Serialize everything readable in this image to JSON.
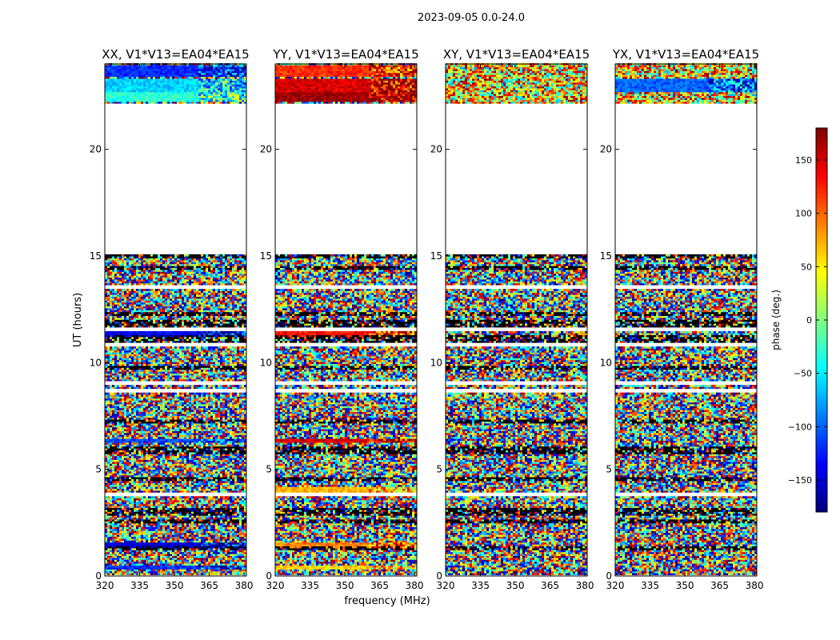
{
  "figure": {
    "suptitle": "2023-09-05 0.0-24.0"
  },
  "colorbar": {
    "label": "phase (deg.)",
    "ticks": [
      150,
      100,
      50,
      0,
      -50,
      -100,
      -150
    ],
    "tick_labels": [
      "150",
      "100",
      "50",
      "0",
      "−50",
      "−100",
      "−150"
    ],
    "vmin": -180,
    "vmax": 180,
    "colormap": "jet",
    "colors": [
      "#00007f",
      "#0000ff",
      "#007fff",
      "#00ffff",
      "#7fff7f",
      "#ffff00",
      "#ff7f00",
      "#ff0000",
      "#7f0000"
    ]
  },
  "chart_data": {
    "type": "heatmap",
    "xlabel": "frequency (MHz)",
    "ylabel": "UT (hours)",
    "xlim": [
      320,
      381
    ],
    "ylim": [
      0,
      24
    ],
    "xticks": [
      320,
      335,
      350,
      365,
      380
    ],
    "yticks": [
      0,
      5,
      10,
      15,
      20
    ],
    "x_tick_labels": [
      "320",
      "335",
      "350",
      "365",
      "380"
    ],
    "y_tick_labels": [
      "0",
      "5",
      "10",
      "15",
      "20"
    ],
    "z_label": "phase (deg.)",
    "z_range": [
      -180,
      180
    ],
    "data_gap_hours": [
      [
        15.0,
        22.0
      ]
    ],
    "panels": [
      {
        "title": "XX, V1*V13=EA04*EA15",
        "coherent_bands": [
          {
            "t": [
              23.4,
              23.9
            ],
            "phase": -120
          },
          {
            "t": [
              22.6,
              23.3
            ],
            "phase": -60
          },
          {
            "t": [
              22.2,
              22.6
            ],
            "phase": -30
          },
          {
            "t": [
              11.2,
              11.5
            ],
            "phase": -140
          },
          {
            "t": [
              6.2,
              6.4
            ],
            "phase": -110
          },
          {
            "t": [
              1.3,
              1.5
            ],
            "phase": -150
          },
          {
            "t": [
              0.3,
              0.5
            ],
            "phase": -120
          }
        ]
      },
      {
        "title": "YY, V1*V13=EA04*EA15",
        "coherent_bands": [
          {
            "t": [
              23.4,
              23.9
            ],
            "phase": 120
          },
          {
            "t": [
              22.6,
              23.3
            ],
            "phase": 150
          },
          {
            "t": [
              22.2,
              22.6
            ],
            "phase": 170
          },
          {
            "t": [
              11.2,
              11.5
            ],
            "phase": 130
          },
          {
            "t": [
              6.2,
              6.4
            ],
            "phase": 150
          },
          {
            "t": [
              3.9,
              4.1
            ],
            "phase": 70
          },
          {
            "t": [
              1.3,
              1.5
            ],
            "phase": 90
          },
          {
            "t": [
              0.3,
              0.5
            ],
            "phase": 60
          }
        ]
      },
      {
        "title": "XY, V1*V13=EA04*EA15",
        "coherent_bands": []
      },
      {
        "title": "YX, V1*V13=EA04*EA15",
        "coherent_bands": [
          {
            "t": [
              22.6,
              23.3
            ],
            "phase": -100
          }
        ]
      }
    ]
  }
}
